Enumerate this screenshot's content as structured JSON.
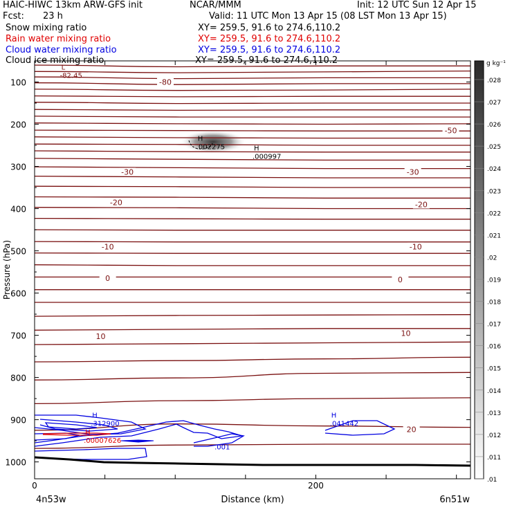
{
  "header": {
    "model_title": "HAIC-HIWC 13km ARW-GFS init",
    "center": "NCAR/MMM",
    "init": "Init: 12 UTC Sun 12 Apr 15",
    "fcst_label": "Fcst:",
    "fcst_value": "23 h",
    "valid": "Valid: 11 UTC Mon 13 Apr 15 (08 LST Mon 13 Apr 15)",
    "fields": [
      {
        "name": "Snow mixing ratio",
        "xy": "XY= 259.5, 91.6 to 274.6,110.2",
        "color": "#000000"
      },
      {
        "name": "Rain water mixing ratio",
        "xy": "XY= 259.5, 91.6 to 274.6,110.2",
        "color": "#e00000"
      },
      {
        "name": "Cloud water mixing ratio",
        "xy": "XY= 259.5, 91.6 to 274.6,110.2",
        "color": "#0000e0"
      },
      {
        "name": "Cloud ice mixing ratio",
        "xy": "XY= 259.5, 91.6 to 274.6,110.2",
        "color": "#000000"
      }
    ]
  },
  "chart_data": {
    "type": "contour-cross-section",
    "ylabel": "Pressure (hPa)",
    "xlabel": "Distance (km)",
    "x_ticks": [
      0,
      200
    ],
    "xlim": [
      0,
      310
    ],
    "y_ticks": [
      100,
      200,
      300,
      400,
      500,
      600,
      700,
      800,
      900,
      1000
    ],
    "ylim": [
      50,
      1040
    ],
    "left_endpoint": "4n53w",
    "right_endpoint": "6n51w",
    "colorbar": {
      "unit": "g kg⁻¹",
      "levels": [
        ".028",
        ".027",
        ".026",
        ".025",
        ".024",
        ".023",
        ".022",
        ".021",
        ".02",
        ".019",
        ".018",
        ".017",
        ".016",
        ".015",
        ".014",
        ".013",
        ".012",
        ".011",
        ".01"
      ]
    },
    "temperature_contours": {
      "color": "#7a1010",
      "lines": [
        {
          "y": [
            60,
            64,
            62,
            62
          ]
        },
        {
          "y": [
            75,
            78,
            76,
            74
          ]
        },
        {
          "y": [
            88,
            92,
            90,
            90
          ]
        },
        {
          "y": [
            102,
            106,
            104,
            104
          ]
        },
        {
          "y": [
            117,
            120,
            119,
            117
          ]
        },
        {
          "y": [
            133,
            135,
            134,
            134
          ]
        },
        {
          "y": [
            148,
            151,
            150,
            150
          ]
        },
        {
          "y": [
            165,
            167,
            166,
            166
          ]
        },
        {
          "y": [
            181,
            183,
            183,
            183
          ]
        },
        {
          "y": [
            197,
            199,
            200,
            199
          ]
        },
        {
          "y": [
            214,
            215,
            216,
            216
          ]
        },
        {
          "y": [
            230,
            232,
            233,
            233
          ]
        },
        {
          "y": [
            247,
            248,
            250,
            250
          ]
        },
        {
          "y": [
            263,
            265,
            266,
            266
          ]
        },
        {
          "y": [
            281,
            283,
            285,
            285
          ]
        },
        {
          "y": [
            301,
            303,
            305,
            305
          ]
        },
        {
          "y": [
            323,
            325,
            327,
            327
          ]
        },
        {
          "y": [
            347,
            348,
            350,
            350
          ]
        },
        {
          "y": [
            372,
            373,
            375,
            375
          ]
        },
        {
          "y": [
            397,
            398,
            400,
            400
          ]
        },
        {
          "y": [
            423,
            424,
            425,
            425
          ]
        },
        {
          "y": [
            450,
            451,
            451,
            451
          ]
        },
        {
          "y": [
            478,
            479,
            479,
            479
          ]
        },
        {
          "y": [
            505,
            506,
            506,
            506
          ]
        },
        {
          "y": [
            533,
            535,
            535,
            535
          ]
        },
        {
          "y": [
            562,
            562,
            562,
            562
          ]
        },
        {
          "y": [
            592,
            592,
            592,
            592
          ]
        },
        {
          "y": [
            622,
            622,
            622,
            622
          ]
        },
        {
          "y": [
            655,
            653,
            652,
            651
          ]
        },
        {
          "y": [
            688,
            686,
            684,
            684
          ]
        },
        {
          "y": [
            722,
            720,
            718,
            716
          ]
        },
        {
          "y": [
            763,
            760,
            756,
            752
          ]
        },
        {
          "y": [
            806,
            801,
            790,
            788
          ]
        },
        {
          "y": [
            862,
            855,
            850,
            848
          ]
        },
        {
          "y": [
            925,
            910,
            915,
            918
          ]
        },
        {
          "y": [
            968,
            960,
            958,
            958
          ]
        }
      ],
      "labels": [
        {
          "text": "-80",
          "x": 93,
          "y": 100
        },
        {
          "text": "-50",
          "x": 296,
          "y": 215
        },
        {
          "text": "-30",
          "x": 66,
          "y": 313
        },
        {
          "text": "-30",
          "x": 269,
          "y": 313
        },
        {
          "text": "-20",
          "x": 58,
          "y": 385
        },
        {
          "text": "-20",
          "x": 275,
          "y": 390
        },
        {
          "text": "-10",
          "x": 52,
          "y": 490
        },
        {
          "text": "-10",
          "x": 271,
          "y": 490
        },
        {
          "text": "0",
          "x": 52,
          "y": 565
        },
        {
          "text": "0",
          "x": 260,
          "y": 568
        },
        {
          "text": "10",
          "x": 47,
          "y": 702
        },
        {
          "text": "10",
          "x": 264,
          "y": 695
        },
        {
          "text": "20",
          "x": 268,
          "y": 923
        }
      ]
    },
    "extremes": [
      {
        "marker": "L",
        "value": "-82.45",
        "x": 18,
        "y": 80,
        "color": "#7a1010"
      },
      {
        "marker": "H",
        "value": ".002275",
        "x": 115,
        "y": 249,
        "color": "#000000"
      },
      {
        "marker": "H",
        "value": ".000997",
        "x": 155,
        "y": 272,
        "color": "#000000"
      },
      {
        "marker": "H",
        "value": ".312900",
        "x": 40,
        "y": 905,
        "color": "#0000e0"
      },
      {
        "marker": "H",
        "value": ".00007626",
        "x": 35,
        "y": 945,
        "color": "#e00000"
      },
      {
        "marker": "H",
        "value": ".041442",
        "x": 210,
        "y": 905,
        "color": "#0000e0"
      }
    ],
    "cloud_water_labels": [
      {
        "text": ".001",
        "x": 128,
        "y": 970
      }
    ]
  }
}
